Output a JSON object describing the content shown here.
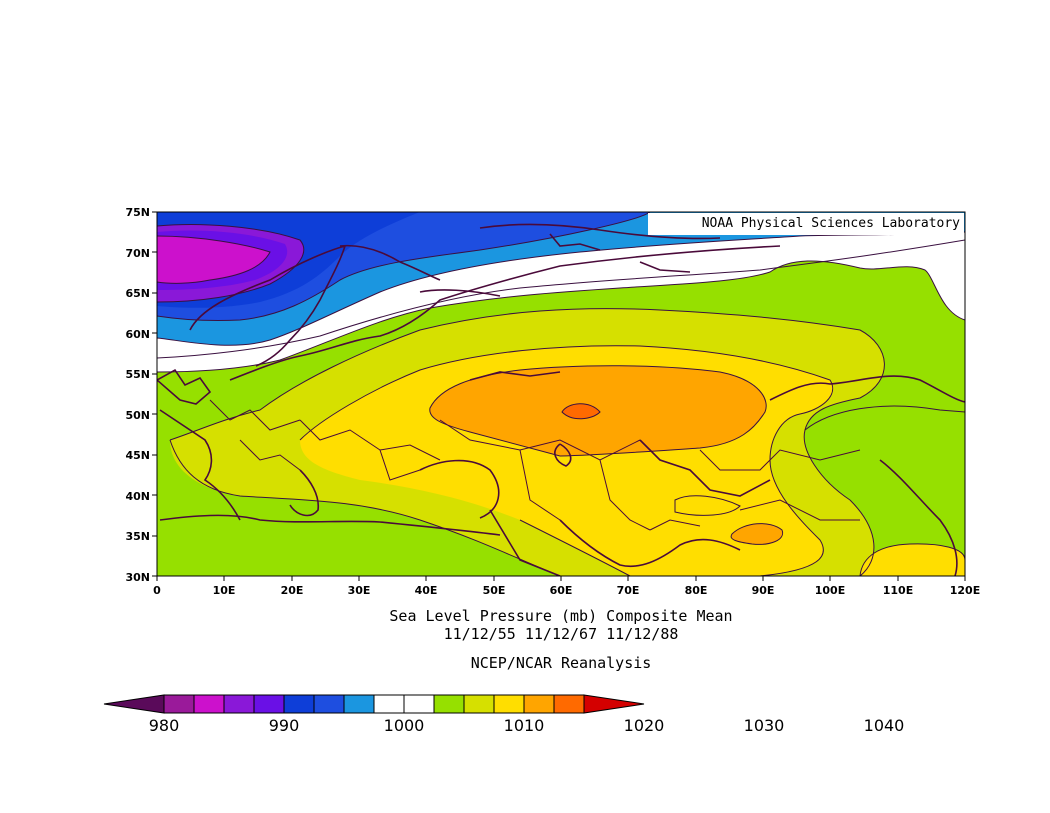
{
  "credit": "NOAA Physical Sciences Laboratory",
  "caption": {
    "line1": "Sea Level Pressure (mb) Composite Mean",
    "line2": "11/12/55 11/12/67 11/12/88",
    "line3": "NCEP/NCAR Reanalysis"
  },
  "axes": {
    "lat_labels": [
      "75N",
      "70N",
      "65N",
      "60N",
      "55N",
      "50N",
      "45N",
      "40N",
      "35N",
      "30N"
    ],
    "lon_labels": [
      "0",
      "10E",
      "20E",
      "30E",
      "40E",
      "50E",
      "60E",
      "70E",
      "80E",
      "90E",
      "100E",
      "110E",
      "120E"
    ]
  },
  "colorbar": {
    "labels": [
      "980",
      "990",
      "1000",
      "1010",
      "1020",
      "1030",
      "1040"
    ],
    "colors": [
      "#5a0a5a",
      "#9a1a9a",
      "#cc11cc",
      "#8a18d8",
      "#6a10e6",
      "#0e3ed8",
      "#1e4ee0",
      "#1b96e0",
      "#ffffff",
      "#ffffff",
      "#96e000",
      "#d6e000",
      "#ffde00",
      "#ffa500",
      "#ff6a00",
      "#d40000"
    ]
  }
}
